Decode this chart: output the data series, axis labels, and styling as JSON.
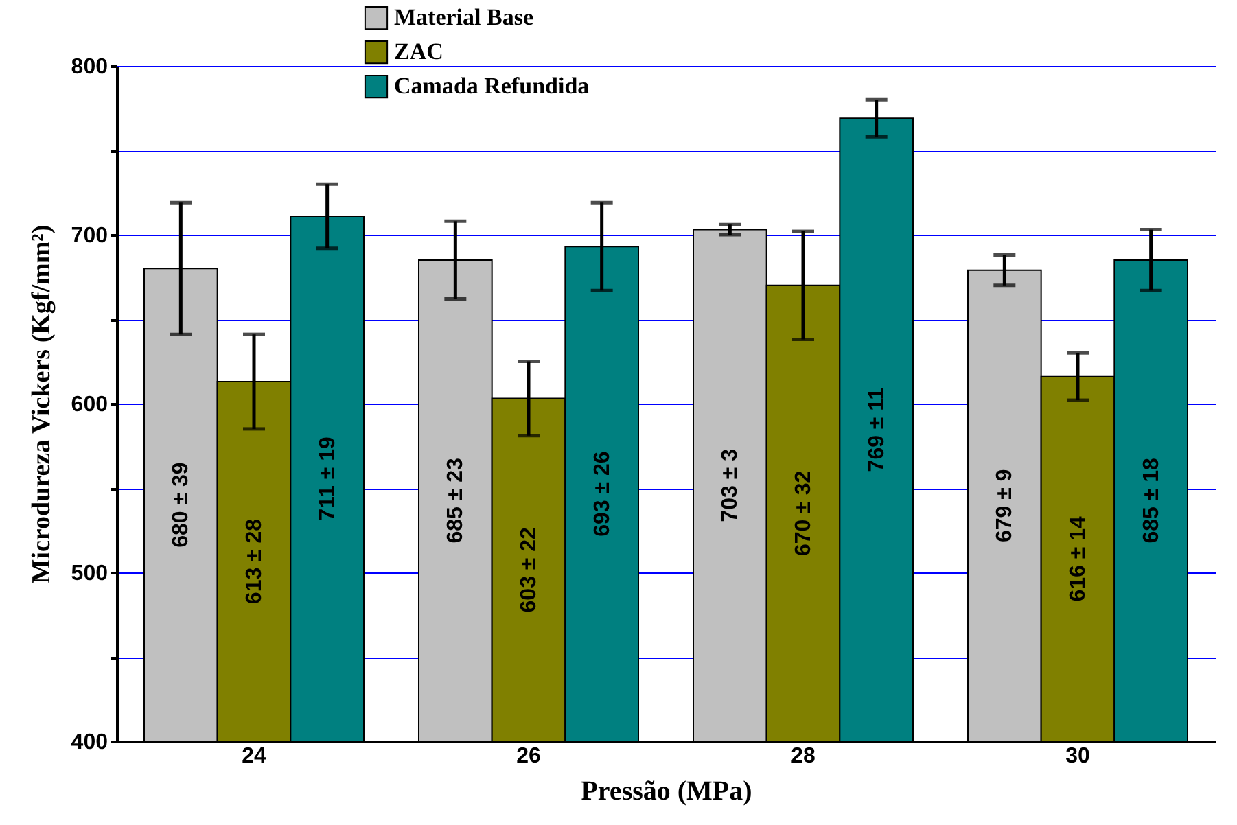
{
  "chart_data": {
    "type": "bar",
    "xlabel": "Pressão (MPa)",
    "ylabel": "Microdureza Vickers (Kgf/mm²)",
    "categories": [
      "24",
      "26",
      "28",
      "30"
    ],
    "series": [
      {
        "name": "Material Base",
        "color": "#c0c0c0",
        "values": [
          680,
          685,
          703,
          679
        ],
        "errors": [
          39,
          23,
          3,
          9
        ],
        "value_labels": [
          "680 ± 39",
          "685 ± 23",
          "703 ± 3",
          "679 ± 9"
        ]
      },
      {
        "name": "ZAC",
        "color": "#808000",
        "values": [
          613,
          603,
          670,
          616
        ],
        "errors": [
          28,
          22,
          32,
          14
        ],
        "value_labels": [
          "613 ± 28",
          "603 ± 22",
          "670 ± 32",
          "616 ± 14"
        ]
      },
      {
        "name": "Camada Refundida",
        "color": "#008080",
        "values": [
          711,
          693,
          769,
          685
        ],
        "errors": [
          19,
          26,
          11,
          18
        ],
        "value_labels": [
          "711 ± 19",
          "693 ± 26",
          "769 ± 11",
          "685 ± 18"
        ]
      }
    ],
    "ylim": [
      400,
      800
    ],
    "yticks": [
      400,
      {
        "value": 450,
        "label": null
      },
      500,
      {
        "value": 550,
        "label": null
      },
      600,
      {
        "value": 650,
        "label": null
      },
      700,
      {
        "value": 750,
        "label": null
      },
      800
    ],
    "grid": "y",
    "legend": "top"
  }
}
